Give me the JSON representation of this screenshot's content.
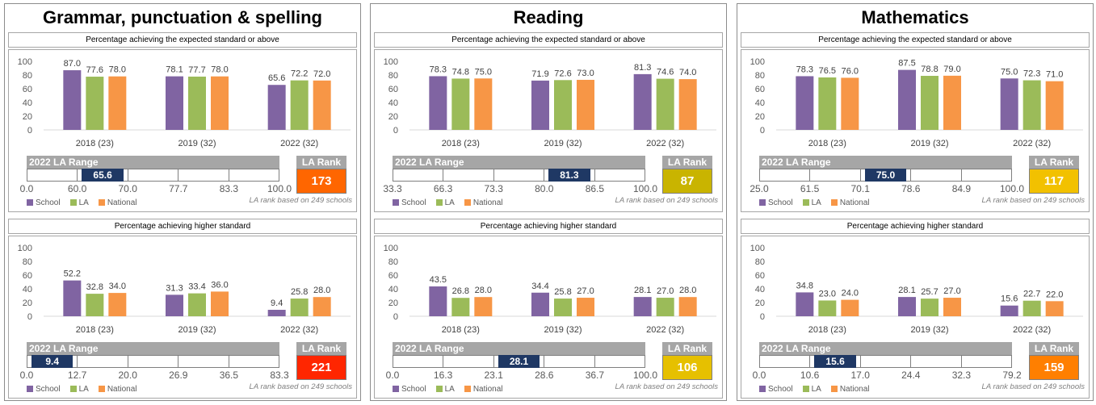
{
  "colors": {
    "school": "#8064a2",
    "la": "#9bbb59",
    "national": "#f79646",
    "marker": "#1f3864"
  },
  "legend": {
    "school": "School",
    "la": "LA",
    "national": "National"
  },
  "y_ticks": [
    "100",
    "80",
    "60",
    "40",
    "20",
    "0"
  ],
  "chart_data": [
    {
      "type": "bar",
      "title": "Grammar, punctuation & spelling",
      "subtitle": "Percentage achieving the expected standard or above",
      "categories": [
        "2018 (23)",
        "2019 (32)",
        "2022 (32)"
      ],
      "ylim": [
        0,
        100
      ],
      "series": [
        {
          "name": "School",
          "values": [
            87.0,
            78.1,
            65.6
          ]
        },
        {
          "name": "LA",
          "values": [
            77.6,
            77.7,
            72.2
          ]
        },
        {
          "name": "National",
          "values": [
            78.0,
            78.0,
            72.0
          ]
        }
      ],
      "range_label": "2022 LA Range",
      "range_ticks": [
        "0.0",
        "60.0",
        "70.0",
        "77.7",
        "83.3",
        "100.0"
      ],
      "school_2022": "65.6",
      "marker_cell": 1,
      "rank_label": "LA Rank",
      "rank": "173",
      "rank_color": "#ff6600",
      "note": "LA rank based on 249 schools"
    },
    {
      "type": "bar",
      "title": "Grammar, punctuation & spelling",
      "subtitle": "Percentage achieving higher standard",
      "categories": [
        "2018 (23)",
        "2019 (32)",
        "2022 (32)"
      ],
      "ylim": [
        0,
        100
      ],
      "series": [
        {
          "name": "School",
          "values": [
            52.2,
            31.3,
            9.4
          ]
        },
        {
          "name": "LA",
          "values": [
            32.8,
            33.4,
            25.8
          ]
        },
        {
          "name": "National",
          "values": [
            34.0,
            36.0,
            28.0
          ]
        }
      ],
      "range_label": "2022 LA Range",
      "range_ticks": [
        "0.0",
        "12.7",
        "20.0",
        "26.9",
        "36.5",
        "83.3"
      ],
      "school_2022": "9.4",
      "marker_cell": 0,
      "rank_label": "LA Rank",
      "rank": "221",
      "rank_color": "#ff2600",
      "note": "LA rank based on 249 schools"
    },
    {
      "type": "bar",
      "title": "Reading",
      "subtitle": "Percentage achieving the expected standard or above",
      "categories": [
        "2018 (23)",
        "2019 (32)",
        "2022 (32)"
      ],
      "ylim": [
        0,
        100
      ],
      "series": [
        {
          "name": "School",
          "values": [
            78.3,
            71.9,
            81.3
          ]
        },
        {
          "name": "LA",
          "values": [
            74.8,
            72.6,
            74.6
          ]
        },
        {
          "name": "National",
          "values": [
            75.0,
            73.0,
            74.0
          ]
        }
      ],
      "range_label": "2022 LA Range",
      "range_ticks": [
        "33.3",
        "66.3",
        "73.3",
        "80.0",
        "86.5",
        "100.0"
      ],
      "school_2022": "81.3",
      "marker_cell": 3,
      "rank_label": "LA Rank",
      "rank": "87",
      "rank_color": "#c9b400",
      "note": "LA rank based on 249 schools"
    },
    {
      "type": "bar",
      "title": "Reading",
      "subtitle": "Percentage achieving higher standard",
      "categories": [
        "2018 (23)",
        "2019 (32)",
        "2022 (32)"
      ],
      "ylim": [
        0,
        100
      ],
      "series": [
        {
          "name": "School",
          "values": [
            43.5,
            34.4,
            28.1
          ]
        },
        {
          "name": "LA",
          "values": [
            26.8,
            25.8,
            27.0
          ]
        },
        {
          "name": "National",
          "values": [
            28.0,
            27.0,
            28.0
          ]
        }
      ],
      "range_label": "2022 LA Range",
      "range_ticks": [
        "0.0",
        "16.3",
        "23.1",
        "28.6",
        "36.7",
        "100.0"
      ],
      "school_2022": "28.1",
      "marker_cell": 2,
      "rank_label": "LA Rank",
      "rank": "106",
      "rank_color": "#e6c000",
      "note": "LA rank based on 249 schools"
    },
    {
      "type": "bar",
      "title": "Mathematics",
      "subtitle": "Percentage achieving the expected standard or above",
      "categories": [
        "2018 (23)",
        "2019 (32)",
        "2022 (32)"
      ],
      "ylim": [
        0,
        100
      ],
      "series": [
        {
          "name": "School",
          "values": [
            78.3,
            87.5,
            75.0
          ]
        },
        {
          "name": "LA",
          "values": [
            76.5,
            78.8,
            72.3
          ]
        },
        {
          "name": "National",
          "values": [
            76.0,
            79.0,
            71.0
          ]
        }
      ],
      "range_label": "2022 LA Range",
      "range_ticks": [
        "25.0",
        "61.5",
        "70.1",
        "78.6",
        "84.9",
        "100.0"
      ],
      "school_2022": "75.0",
      "marker_cell": 2,
      "rank_label": "LA Rank",
      "rank": "117",
      "rank_color": "#f2c100",
      "note": "LA rank based on 249 schools"
    },
    {
      "type": "bar",
      "title": "Mathematics",
      "subtitle": "Percentage achieving higher standard",
      "categories": [
        "2018 (23)",
        "2019 (32)",
        "2022 (32)"
      ],
      "ylim": [
        0,
        100
      ],
      "series": [
        {
          "name": "School",
          "values": [
            34.8,
            28.1,
            15.6
          ]
        },
        {
          "name": "LA",
          "values": [
            23.0,
            25.7,
            22.7
          ]
        },
        {
          "name": "National",
          "values": [
            24.0,
            27.0,
            22.0
          ]
        }
      ],
      "range_label": "2022 LA Range",
      "range_ticks": [
        "0.0",
        "10.6",
        "17.0",
        "24.4",
        "32.3",
        "79.2"
      ],
      "school_2022": "15.6",
      "marker_cell": 1,
      "rank_label": "LA Rank",
      "rank": "159",
      "rank_color": "#ff7f00",
      "note": "LA rank based on 249 schools"
    }
  ]
}
